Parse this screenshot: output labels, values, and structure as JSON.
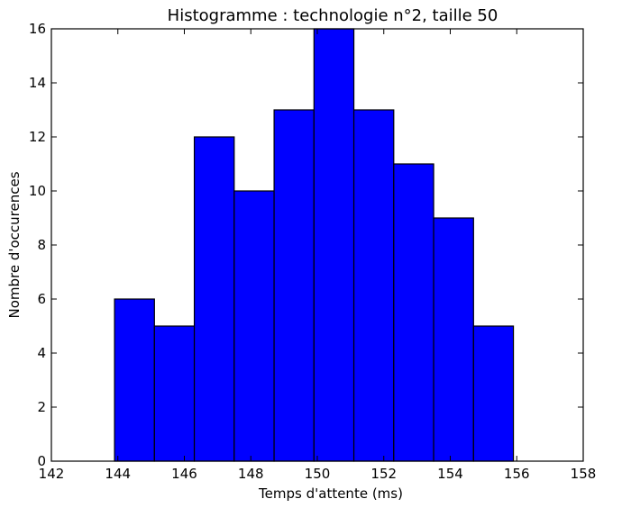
{
  "chart_data": {
    "type": "bar",
    "title": "Histogramme : technologie n°2, taille 50",
    "xlabel": "Temps d'attente (ms)",
    "ylabel": "Nombre d'occurences",
    "xlim": [
      142,
      158
    ],
    "ylim": [
      0,
      16
    ],
    "xticks": [
      142,
      144,
      146,
      148,
      150,
      152,
      154,
      156,
      158
    ],
    "yticks": [
      0,
      2,
      4,
      6,
      8,
      10,
      12,
      14,
      16
    ],
    "bin_edges": [
      143.9,
      145.1,
      146.3,
      147.5,
      148.7,
      149.9,
      151.1,
      152.3,
      153.5,
      154.7,
      155.9
    ],
    "values": [
      6,
      5,
      12,
      10,
      13,
      16,
      13,
      11,
      9,
      5
    ],
    "bar_color": "#0000ff",
    "edge_color": "#000000",
    "grid": false,
    "legend": null
  }
}
